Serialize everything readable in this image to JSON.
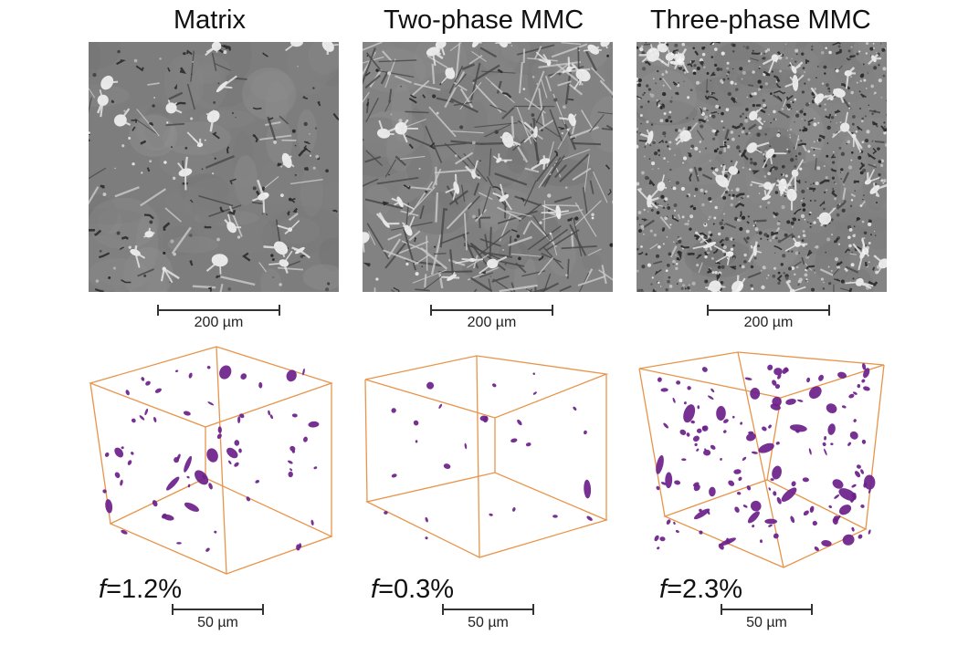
{
  "panels": [
    {
      "title": "Matrix",
      "scale_micro": "200 µm",
      "f_symbol": "f",
      "f_value": "=1.2%",
      "scale_3d": "50 µm",
      "tone": "#7d7d7d",
      "pore_count": 70
    },
    {
      "title": "Two-phase MMC",
      "scale_micro": "200 µm",
      "f_symbol": "f",
      "f_value": "=0.3%",
      "scale_3d": "50 µm",
      "tone": "#828282",
      "pore_count": 26
    },
    {
      "title": "Three-phase MMC",
      "scale_micro": "200 µm",
      "f_symbol": "f",
      "f_value": "=2.3%",
      "scale_3d": "50 µm",
      "tone": "#848484",
      "pore_count": 150
    }
  ],
  "colors": {
    "pore": "#6b1f8a",
    "box_edge": "#e8944a",
    "bright_phase": "#f4f4f4",
    "dark_phase": "#2a2a2a"
  }
}
